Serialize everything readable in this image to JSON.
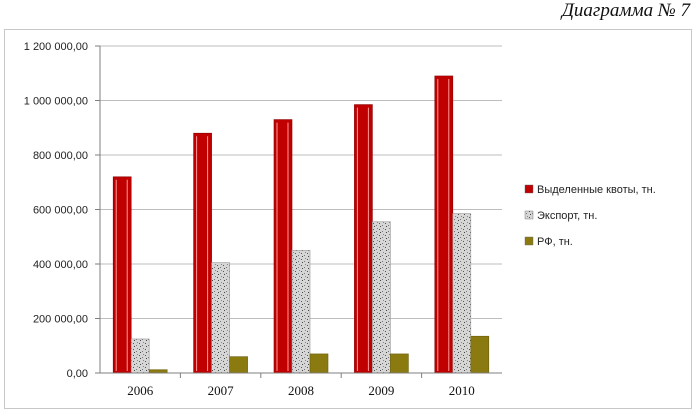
{
  "caption": "Диаграмма № 7",
  "chart_data": {
    "type": "bar",
    "categories": [
      "2006",
      "2007",
      "2008",
      "2009",
      "2010"
    ],
    "series": [
      {
        "name": "Выделенные квоты, тн.",
        "values": [
          720000,
          880000,
          930000,
          985000,
          1090000
        ],
        "color": "#c00000"
      },
      {
        "name": "Экспорт, тн.",
        "values": [
          125000,
          405000,
          450000,
          555000,
          585000
        ],
        "color": "#c8c8c8"
      },
      {
        "name": "РФ, тн.",
        "values": [
          12000,
          60000,
          70000,
          70000,
          135000
        ],
        "color": "#8a7a10"
      }
    ],
    "ylim": [
      0,
      1200000
    ],
    "yticks": [
      0,
      200000,
      400000,
      600000,
      800000,
      1000000,
      1200000
    ],
    "ytick_labels": [
      "0,00",
      "200 000,00",
      "400 000,00",
      "600 000,00",
      "800 000,00",
      "1 000 000,00",
      "1 200 000,00"
    ],
    "grid": true,
    "legend_position": "right"
  }
}
